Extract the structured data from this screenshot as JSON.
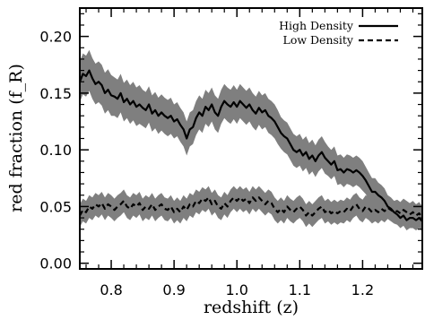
{
  "chart_data": {
    "type": "line",
    "title": "",
    "xlabel": "redshift (z)",
    "ylabel": "red fraction (f_R)",
    "xlim": [
      0.75,
      1.295
    ],
    "ylim": [
      -0.005,
      0.225
    ],
    "xticks": [
      0.8,
      0.9,
      1.0,
      1.1,
      1.2
    ],
    "xtick_labels": [
      "0.8",
      "0.9",
      "1.0",
      "1.1",
      "1.2"
    ],
    "yticks": [
      0.0,
      0.05,
      0.1,
      0.15,
      0.2
    ],
    "ytick_labels": [
      "0.00",
      "0.05",
      "0.10",
      "0.15",
      "0.20"
    ],
    "legend_position": "top-right",
    "grid": false,
    "band_color": "#7f7f7f",
    "line_color": "#000000",
    "series": [
      {
        "name": "High Density",
        "style": "solid",
        "x": [
          0.75,
          0.755,
          0.76,
          0.765,
          0.77,
          0.775,
          0.78,
          0.785,
          0.79,
          0.795,
          0.8,
          0.805,
          0.81,
          0.815,
          0.82,
          0.825,
          0.83,
          0.835,
          0.84,
          0.845,
          0.85,
          0.855,
          0.86,
          0.865,
          0.87,
          0.875,
          0.88,
          0.885,
          0.89,
          0.895,
          0.9,
          0.905,
          0.91,
          0.915,
          0.92,
          0.925,
          0.93,
          0.935,
          0.94,
          0.945,
          0.95,
          0.955,
          0.96,
          0.965,
          0.97,
          0.975,
          0.98,
          0.985,
          0.99,
          0.995,
          1.0,
          1.005,
          1.01,
          1.015,
          1.02,
          1.025,
          1.03,
          1.035,
          1.04,
          1.045,
          1.05,
          1.055,
          1.06,
          1.065,
          1.07,
          1.075,
          1.08,
          1.085,
          1.09,
          1.095,
          1.1,
          1.105,
          1.11,
          1.115,
          1.12,
          1.125,
          1.13,
          1.135,
          1.14,
          1.145,
          1.15,
          1.155,
          1.16,
          1.165,
          1.17,
          1.175,
          1.18,
          1.185,
          1.19,
          1.195,
          1.2,
          1.205,
          1.21,
          1.215,
          1.22,
          1.225,
          1.23,
          1.235,
          1.24,
          1.245,
          1.25,
          1.255,
          1.26,
          1.265,
          1.27,
          1.275,
          1.28,
          1.285,
          1.29,
          1.295
        ],
        "values": [
          0.16,
          0.167,
          0.165,
          0.17,
          0.163,
          0.158,
          0.16,
          0.157,
          0.15,
          0.153,
          0.148,
          0.147,
          0.145,
          0.15,
          0.142,
          0.145,
          0.14,
          0.143,
          0.138,
          0.14,
          0.137,
          0.135,
          0.14,
          0.132,
          0.135,
          0.13,
          0.133,
          0.13,
          0.128,
          0.13,
          0.125,
          0.127,
          0.122,
          0.118,
          0.11,
          0.118,
          0.12,
          0.128,
          0.133,
          0.13,
          0.138,
          0.135,
          0.14,
          0.133,
          0.13,
          0.138,
          0.143,
          0.14,
          0.138,
          0.142,
          0.138,
          0.143,
          0.14,
          0.137,
          0.14,
          0.135,
          0.132,
          0.137,
          0.133,
          0.135,
          0.13,
          0.128,
          0.125,
          0.12,
          0.115,
          0.112,
          0.11,
          0.105,
          0.1,
          0.098,
          0.1,
          0.095,
          0.098,
          0.092,
          0.095,
          0.09,
          0.095,
          0.098,
          0.093,
          0.09,
          0.087,
          0.09,
          0.082,
          0.083,
          0.08,
          0.083,
          0.082,
          0.08,
          0.082,
          0.08,
          0.077,
          0.073,
          0.068,
          0.063,
          0.063,
          0.06,
          0.058,
          0.055,
          0.05,
          0.048,
          0.045,
          0.043,
          0.04,
          0.042,
          0.038,
          0.04,
          0.04,
          0.038,
          0.04,
          0.037
        ],
        "lower": [
          0.142,
          0.149,
          0.147,
          0.152,
          0.145,
          0.14,
          0.142,
          0.139,
          0.132,
          0.135,
          0.13,
          0.13,
          0.128,
          0.133,
          0.125,
          0.128,
          0.123,
          0.126,
          0.121,
          0.123,
          0.121,
          0.119,
          0.124,
          0.116,
          0.119,
          0.114,
          0.117,
          0.114,
          0.112,
          0.114,
          0.11,
          0.112,
          0.107,
          0.103,
          0.095,
          0.103,
          0.105,
          0.113,
          0.118,
          0.115,
          0.123,
          0.12,
          0.125,
          0.118,
          0.115,
          0.123,
          0.128,
          0.125,
          0.123,
          0.127,
          0.123,
          0.128,
          0.125,
          0.122,
          0.125,
          0.12,
          0.117,
          0.122,
          0.118,
          0.12,
          0.115,
          0.113,
          0.11,
          0.105,
          0.101,
          0.098,
          0.096,
          0.091,
          0.086,
          0.084,
          0.086,
          0.081,
          0.084,
          0.078,
          0.081,
          0.076,
          0.081,
          0.084,
          0.079,
          0.077,
          0.074,
          0.077,
          0.069,
          0.07,
          0.067,
          0.07,
          0.069,
          0.067,
          0.069,
          0.067,
          0.064,
          0.061,
          0.056,
          0.051,
          0.051,
          0.049,
          0.047,
          0.044,
          0.04,
          0.038,
          0.035,
          0.034,
          0.031,
          0.033,
          0.029,
          0.031,
          0.031,
          0.029,
          0.031,
          0.028
        ],
        "upper": [
          0.178,
          0.185,
          0.183,
          0.188,
          0.181,
          0.176,
          0.178,
          0.175,
          0.168,
          0.171,
          0.166,
          0.164,
          0.162,
          0.167,
          0.159,
          0.162,
          0.157,
          0.16,
          0.155,
          0.157,
          0.153,
          0.151,
          0.156,
          0.148,
          0.151,
          0.146,
          0.149,
          0.146,
          0.144,
          0.146,
          0.14,
          0.142,
          0.137,
          0.133,
          0.125,
          0.133,
          0.135,
          0.143,
          0.148,
          0.145,
          0.153,
          0.15,
          0.155,
          0.148,
          0.145,
          0.153,
          0.158,
          0.155,
          0.153,
          0.157,
          0.153,
          0.158,
          0.155,
          0.152,
          0.155,
          0.15,
          0.147,
          0.152,
          0.148,
          0.15,
          0.145,
          0.143,
          0.14,
          0.135,
          0.129,
          0.126,
          0.124,
          0.119,
          0.114,
          0.112,
          0.114,
          0.109,
          0.112,
          0.106,
          0.109,
          0.104,
          0.109,
          0.112,
          0.107,
          0.103,
          0.1,
          0.103,
          0.095,
          0.096,
          0.093,
          0.096,
          0.095,
          0.093,
          0.095,
          0.093,
          0.09,
          0.085,
          0.08,
          0.075,
          0.075,
          0.071,
          0.069,
          0.066,
          0.06,
          0.058,
          0.055,
          0.052,
          0.049,
          0.051,
          0.047,
          0.049,
          0.049,
          0.047,
          0.049,
          0.046
        ]
      },
      {
        "name": "Low Density",
        "style": "dashed",
        "x": [
          0.75,
          0.755,
          0.76,
          0.765,
          0.77,
          0.775,
          0.78,
          0.785,
          0.79,
          0.795,
          0.8,
          0.805,
          0.81,
          0.815,
          0.82,
          0.825,
          0.83,
          0.835,
          0.84,
          0.845,
          0.85,
          0.855,
          0.86,
          0.865,
          0.87,
          0.875,
          0.88,
          0.885,
          0.89,
          0.895,
          0.9,
          0.905,
          0.91,
          0.915,
          0.92,
          0.925,
          0.93,
          0.935,
          0.94,
          0.945,
          0.95,
          0.955,
          0.96,
          0.965,
          0.97,
          0.975,
          0.98,
          0.985,
          0.99,
          0.995,
          1.0,
          1.005,
          1.01,
          1.015,
          1.02,
          1.025,
          1.03,
          1.035,
          1.04,
          1.045,
          1.05,
          1.055,
          1.06,
          1.065,
          1.07,
          1.075,
          1.08,
          1.085,
          1.09,
          1.095,
          1.1,
          1.105,
          1.11,
          1.115,
          1.12,
          1.125,
          1.13,
          1.135,
          1.14,
          1.145,
          1.15,
          1.155,
          1.16,
          1.165,
          1.17,
          1.175,
          1.18,
          1.185,
          1.19,
          1.195,
          1.2,
          1.205,
          1.21,
          1.215,
          1.22,
          1.225,
          1.23,
          1.235,
          1.24,
          1.245,
          1.25,
          1.255,
          1.26,
          1.265,
          1.27,
          1.275,
          1.28,
          1.285,
          1.29,
          1.295
        ],
        "values": [
          0.042,
          0.047,
          0.045,
          0.05,
          0.048,
          0.052,
          0.05,
          0.053,
          0.048,
          0.052,
          0.05,
          0.047,
          0.05,
          0.052,
          0.055,
          0.05,
          0.048,
          0.052,
          0.05,
          0.053,
          0.047,
          0.05,
          0.048,
          0.052,
          0.047,
          0.05,
          0.052,
          0.048,
          0.047,
          0.05,
          0.045,
          0.048,
          0.045,
          0.05,
          0.047,
          0.052,
          0.05,
          0.055,
          0.053,
          0.057,
          0.055,
          0.058,
          0.052,
          0.055,
          0.05,
          0.048,
          0.053,
          0.05,
          0.055,
          0.058,
          0.055,
          0.058,
          0.055,
          0.057,
          0.053,
          0.058,
          0.055,
          0.058,
          0.055,
          0.052,
          0.055,
          0.053,
          0.048,
          0.045,
          0.048,
          0.045,
          0.05,
          0.047,
          0.045,
          0.048,
          0.05,
          0.047,
          0.042,
          0.045,
          0.042,
          0.045,
          0.048,
          0.05,
          0.045,
          0.047,
          0.044,
          0.046,
          0.044,
          0.046,
          0.045,
          0.048,
          0.046,
          0.05,
          0.052,
          0.048,
          0.046,
          0.05,
          0.048,
          0.045,
          0.047,
          0.045,
          0.048,
          0.046,
          0.049,
          0.047,
          0.045,
          0.046,
          0.044,
          0.047,
          0.045,
          0.043,
          0.045,
          0.042,
          0.044,
          0.04
        ],
        "lower": [
          0.032,
          0.037,
          0.035,
          0.04,
          0.038,
          0.042,
          0.04,
          0.043,
          0.038,
          0.042,
          0.04,
          0.037,
          0.04,
          0.042,
          0.045,
          0.04,
          0.038,
          0.042,
          0.04,
          0.043,
          0.037,
          0.04,
          0.038,
          0.042,
          0.037,
          0.04,
          0.042,
          0.038,
          0.037,
          0.04,
          0.035,
          0.038,
          0.035,
          0.04,
          0.037,
          0.042,
          0.04,
          0.045,
          0.043,
          0.047,
          0.045,
          0.048,
          0.042,
          0.045,
          0.04,
          0.038,
          0.043,
          0.04,
          0.045,
          0.048,
          0.045,
          0.048,
          0.045,
          0.047,
          0.043,
          0.048,
          0.045,
          0.048,
          0.045,
          0.042,
          0.045,
          0.043,
          0.038,
          0.035,
          0.038,
          0.035,
          0.04,
          0.037,
          0.035,
          0.038,
          0.04,
          0.037,
          0.032,
          0.035,
          0.032,
          0.035,
          0.038,
          0.04,
          0.035,
          0.037,
          0.034,
          0.036,
          0.034,
          0.036,
          0.035,
          0.038,
          0.036,
          0.04,
          0.042,
          0.038,
          0.036,
          0.04,
          0.038,
          0.035,
          0.037,
          0.035,
          0.038,
          0.036,
          0.039,
          0.037,
          0.035,
          0.036,
          0.034,
          0.037,
          0.035,
          0.033,
          0.035,
          0.032,
          0.034,
          0.03
        ],
        "upper": [
          0.052,
          0.057,
          0.055,
          0.06,
          0.058,
          0.062,
          0.06,
          0.063,
          0.058,
          0.062,
          0.06,
          0.057,
          0.06,
          0.062,
          0.065,
          0.06,
          0.058,
          0.062,
          0.06,
          0.063,
          0.057,
          0.06,
          0.058,
          0.062,
          0.057,
          0.06,
          0.062,
          0.058,
          0.057,
          0.06,
          0.055,
          0.058,
          0.055,
          0.06,
          0.057,
          0.062,
          0.06,
          0.065,
          0.063,
          0.067,
          0.065,
          0.068,
          0.062,
          0.065,
          0.06,
          0.058,
          0.063,
          0.06,
          0.065,
          0.068,
          0.065,
          0.068,
          0.065,
          0.067,
          0.063,
          0.068,
          0.065,
          0.068,
          0.065,
          0.062,
          0.065,
          0.063,
          0.058,
          0.055,
          0.058,
          0.055,
          0.06,
          0.057,
          0.055,
          0.058,
          0.06,
          0.057,
          0.052,
          0.055,
          0.052,
          0.055,
          0.058,
          0.06,
          0.055,
          0.057,
          0.054,
          0.056,
          0.054,
          0.056,
          0.055,
          0.058,
          0.056,
          0.06,
          0.062,
          0.058,
          0.056,
          0.06,
          0.058,
          0.055,
          0.057,
          0.055,
          0.058,
          0.056,
          0.059,
          0.057,
          0.055,
          0.056,
          0.054,
          0.057,
          0.055,
          0.053,
          0.055,
          0.052,
          0.054,
          0.05
        ]
      }
    ]
  }
}
